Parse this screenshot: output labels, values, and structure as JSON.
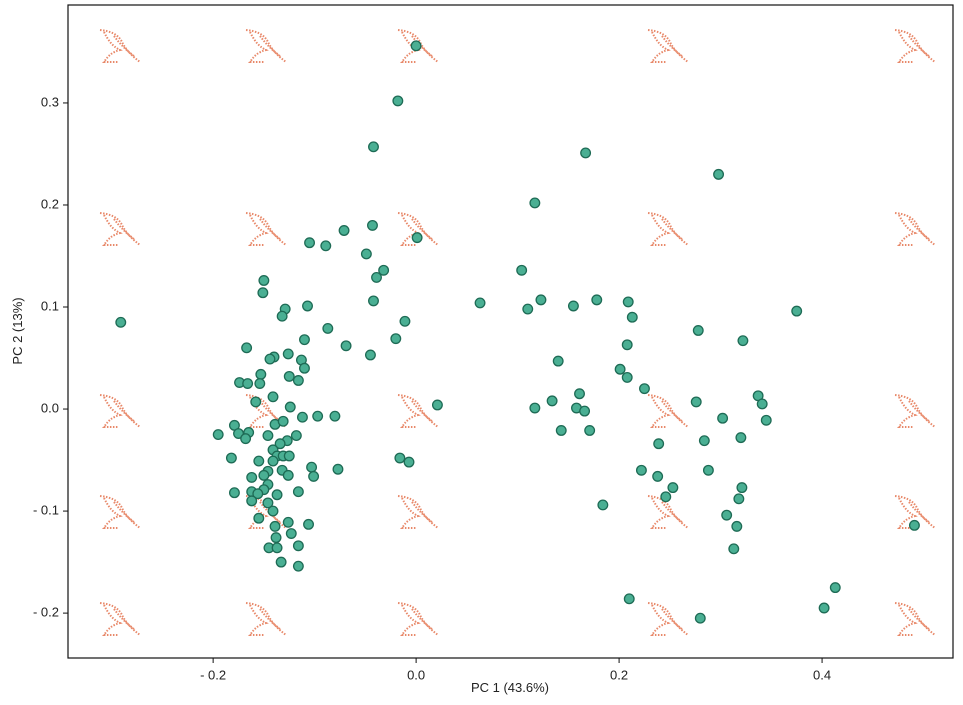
{
  "chart_data": {
    "type": "scatter",
    "xlabel": "PC 1 (43.6%)",
    "ylabel": "PC 2 (13%)",
    "xlim": [
      -0.343,
      0.529
    ],
    "ylim": [
      -0.244,
      0.396
    ],
    "xticks": [
      {
        "value": -0.2,
        "label": "- 0.2"
      },
      {
        "value": 0,
        "label": "0.0"
      },
      0.2,
      0.4
    ],
    "yticks": [
      {
        "value": -0.2,
        "label": "- 0.2"
      },
      {
        "value": -0.1,
        "label": "- 0.1"
      },
      {
        "value": 0,
        "label": "0.0"
      },
      0.1,
      0.2,
      0.3
    ],
    "x": [
      0.0,
      -0.018,
      -0.042,
      0.167,
      0.298,
      0.117,
      -0.043,
      -0.071,
      0.001,
      -0.105,
      -0.089,
      -0.049,
      -0.15,
      -0.032,
      -0.039,
      0.104,
      -0.151,
      -0.042,
      0.123,
      0.063,
      0.11,
      0.155,
      0.178,
      0.209,
      0.213,
      0.375,
      -0.129,
      -0.107,
      -0.132,
      -0.291,
      -0.011,
      -0.087,
      0.278,
      -0.02,
      0.322,
      -0.069,
      0.208,
      -0.167,
      -0.11,
      -0.045,
      -0.14,
      -0.144,
      -0.126,
      -0.113,
      0.14,
      -0.11,
      0.201,
      -0.153,
      -0.125,
      0.208,
      -0.116,
      -0.174,
      -0.166,
      -0.154,
      0.225,
      0.161,
      -0.141,
      -0.158,
      0.134,
      0.337,
      0.276,
      0.021,
      -0.124,
      0.117,
      0.158,
      0.166,
      0.341,
      -0.112,
      -0.097,
      0.302,
      -0.08,
      0.345,
      -0.139,
      -0.131,
      -0.179,
      0.171,
      0.143,
      -0.165,
      -0.195,
      -0.175,
      -0.146,
      -0.168,
      -0.118,
      0.32,
      -0.127,
      0.284,
      -0.134,
      0.239,
      -0.141,
      -0.137,
      -0.131,
      -0.125,
      -0.182,
      -0.016,
      -0.141,
      -0.007,
      -0.155,
      -0.103,
      -0.077,
      0.222,
      0.288,
      -0.101,
      -0.146,
      -0.132,
      -0.15,
      0.238,
      -0.126,
      -0.162,
      -0.146,
      -0.15,
      0.321,
      0.253,
      -0.162,
      -0.179,
      -0.156,
      -0.116,
      -0.137,
      0.246,
      0.318,
      -0.162,
      -0.146,
      0.184,
      -0.141,
      0.306,
      -0.155,
      -0.126,
      0.316,
      -0.139,
      -0.106,
      0.491,
      -0.123,
      -0.138,
      -0.145,
      -0.137,
      0.313,
      -0.116,
      -0.133,
      -0.116,
      0.413,
      0.21,
      0.402,
      0.28
    ],
    "series": [
      {
        "color": "#4aaf93",
        "values": [
          0.356,
          0.302,
          0.257,
          0.251,
          0.23,
          0.202,
          0.18,
          0.175,
          0.168,
          0.163,
          0.16,
          0.152,
          0.126,
          0.136,
          0.129,
          0.136,
          0.114,
          0.106,
          0.107,
          0.104,
          0.098,
          0.101,
          0.107,
          0.105,
          0.09,
          0.096,
          0.098,
          0.101,
          0.091,
          0.085,
          0.086,
          0.079,
          0.077,
          0.069,
          0.067,
          0.062,
          0.063,
          0.06,
          0.068,
          0.053,
          0.051,
          0.049,
          0.054,
          0.048,
          0.047,
          0.04,
          0.039,
          0.034,
          0.032,
          0.031,
          0.028,
          0.026,
          0.025,
          0.025,
          0.02,
          0.015,
          0.012,
          0.007,
          0.008,
          0.013,
          0.007,
          0.004,
          0.002,
          0.001,
          0.001,
          -0.002,
          0.005,
          -0.008,
          -0.007,
          -0.009,
          -0.007,
          -0.011,
          -0.015,
          -0.012,
          -0.016,
          -0.021,
          -0.021,
          -0.023,
          -0.025,
          -0.024,
          -0.026,
          -0.029,
          -0.026,
          -0.028,
          -0.031,
          -0.031,
          -0.034,
          -0.034,
          -0.04,
          -0.046,
          -0.046,
          -0.046,
          -0.048,
          -0.048,
          -0.051,
          -0.052,
          -0.051,
          -0.057,
          -0.059,
          -0.06,
          -0.06,
          -0.066,
          -0.061,
          -0.06,
          -0.065,
          -0.066,
          -0.065,
          -0.067,
          -0.074,
          -0.079,
          -0.077,
          -0.077,
          -0.081,
          -0.082,
          -0.083,
          -0.081,
          -0.084,
          -0.086,
          -0.088,
          -0.09,
          -0.092,
          -0.094,
          -0.1,
          -0.104,
          -0.107,
          -0.111,
          -0.115,
          -0.115,
          -0.113,
          -0.114,
          -0.122,
          -0.126,
          -0.136,
          -0.136,
          -0.137,
          -0.134,
          -0.15,
          -0.154,
          -0.175,
          -0.186,
          -0.195,
          -0.205
        ]
      }
    ]
  }
}
